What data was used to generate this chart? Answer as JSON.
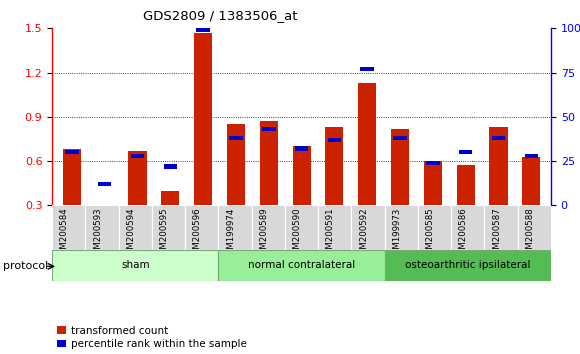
{
  "title": "GDS2809 / 1383506_at",
  "samples": [
    "GSM200584",
    "GSM200593",
    "GSM200594",
    "GSM200595",
    "GSM200596",
    "GSM199974",
    "GSM200589",
    "GSM200590",
    "GSM200591",
    "GSM200592",
    "GSM199973",
    "GSM200585",
    "GSM200586",
    "GSM200587",
    "GSM200588"
  ],
  "transformed_count": [
    0.68,
    0.28,
    0.67,
    0.4,
    1.47,
    0.85,
    0.87,
    0.7,
    0.83,
    1.13,
    0.82,
    0.6,
    0.57,
    0.83,
    0.63
  ],
  "percentile_rank_pct": [
    30,
    12,
    28,
    22,
    99,
    38,
    43,
    32,
    37,
    77,
    38,
    24,
    30,
    38,
    28
  ],
  "groups": [
    {
      "label": "sham",
      "start": 0,
      "end": 5,
      "color": "#ccffcc"
    },
    {
      "label": "normal contralateral",
      "start": 5,
      "end": 10,
      "color": "#99ee99"
    },
    {
      "label": "osteoarthritic ipsilateral",
      "start": 10,
      "end": 15,
      "color": "#55bb55"
    }
  ],
  "bar_color_red": "#cc2200",
  "bar_color_blue": "#0000cc",
  "ylim_left": [
    0.3,
    1.5
  ],
  "ylim_right": [
    0,
    100
  ],
  "yticks_left": [
    0.3,
    0.6,
    0.9,
    1.2,
    1.5
  ],
  "yticks_right": [
    0,
    25,
    50,
    75,
    100
  ],
  "ytick_labels_right": [
    "0",
    "25",
    "50",
    "75",
    "100%"
  ],
  "protocol_label": "protocol",
  "legend_red": "transformed count",
  "legend_blue": "percentile rank within the sample"
}
